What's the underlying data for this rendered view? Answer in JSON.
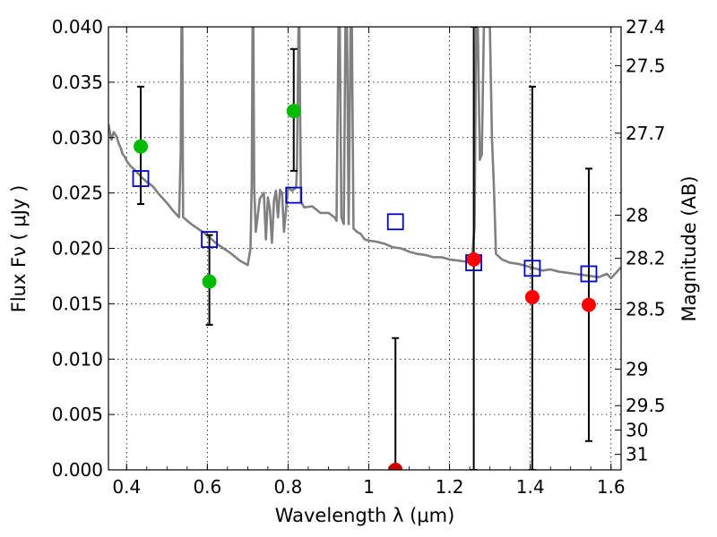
{
  "chart_data": {
    "type": "scatter",
    "xlabel": "Wavelength  λ (μm)",
    "ylabel": "Flux  Fν  ( μJy )",
    "y2label": "Magnitude (AB)",
    "xlim": [
      0.355,
      1.625
    ],
    "ylim": [
      0.0,
      0.04
    ],
    "grid": true,
    "x_ticks": [
      0.4,
      0.6,
      0.8,
      1.0,
      1.2,
      1.4,
      1.6
    ],
    "x_tick_labels": [
      "0.4",
      "0.6",
      "0.8",
      "1",
      "1.2",
      "1.4",
      "1.6"
    ],
    "y_ticks": [
      0.0,
      0.005,
      0.01,
      0.015,
      0.02,
      0.025,
      0.03,
      0.035,
      0.04
    ],
    "y_tick_labels": [
      "0.000",
      "0.005",
      "0.010",
      "0.015",
      "0.020",
      "0.025",
      "0.030",
      "0.035",
      "0.040"
    ],
    "y2_ticks": [
      {
        "label": "27.4",
        "flux": 0.04
      },
      {
        "label": "27.5",
        "flux": 0.0365
      },
      {
        "label": "27.7",
        "flux": 0.0304
      },
      {
        "label": "28",
        "flux": 0.023
      },
      {
        "label": "28.2",
        "flux": 0.0191
      },
      {
        "label": "28.5",
        "flux": 0.0145
      },
      {
        "label": "29",
        "flux": 0.0091
      },
      {
        "label": "29.5",
        "flux": 0.0058
      },
      {
        "label": "30",
        "flux": 0.0036
      },
      {
        "label": "31",
        "flux": 0.0014
      }
    ],
    "model_color": "#808080",
    "model_spectrum": [
      [
        0.355,
        0.0312
      ],
      [
        0.362,
        0.0298
      ],
      [
        0.368,
        0.0305
      ],
      [
        0.375,
        0.0301
      ],
      [
        0.38,
        0.0295
      ],
      [
        0.386,
        0.029
      ],
      [
        0.39,
        0.0285
      ],
      [
        0.395,
        0.0283
      ],
      [
        0.4,
        0.0279
      ],
      [
        0.41,
        0.0274
      ],
      [
        0.42,
        0.0271
      ],
      [
        0.435,
        0.0265
      ],
      [
        0.45,
        0.026
      ],
      [
        0.465,
        0.0256
      ],
      [
        0.48,
        0.0249
      ],
      [
        0.5,
        0.0241
      ],
      [
        0.515,
        0.0234
      ],
      [
        0.53,
        0.0228
      ],
      [
        0.534,
        0.0285
      ],
      [
        0.536,
        0.04
      ],
      [
        0.538,
        0.04
      ],
      [
        0.54,
        0.0228
      ],
      [
        0.56,
        0.0222
      ],
      [
        0.58,
        0.0217
      ],
      [
        0.6,
        0.0212
      ],
      [
        0.62,
        0.0205
      ],
      [
        0.64,
        0.02
      ],
      [
        0.66,
        0.0195
      ],
      [
        0.68,
        0.0189
      ],
      [
        0.7,
        0.0185
      ],
      [
        0.707,
        0.02
      ],
      [
        0.71,
        0.026
      ],
      [
        0.712,
        0.04
      ],
      [
        0.714,
        0.04
      ],
      [
        0.716,
        0.0255
      ],
      [
        0.72,
        0.0215
      ],
      [
        0.73,
        0.0245
      ],
      [
        0.74,
        0.025
      ],
      [
        0.745,
        0.0208
      ],
      [
        0.75,
        0.0246
      ],
      [
        0.755,
        0.0235
      ],
      [
        0.76,
        0.0205
      ],
      [
        0.765,
        0.0243
      ],
      [
        0.77,
        0.0252
      ],
      [
        0.775,
        0.0228
      ],
      [
        0.78,
        0.0253
      ],
      [
        0.785,
        0.025
      ],
      [
        0.79,
        0.0215
      ],
      [
        0.8,
        0.0255
      ],
      [
        0.81,
        0.0252
      ],
      [
        0.82,
        0.0255
      ],
      [
        0.822,
        0.027
      ],
      [
        0.826,
        0.04
      ],
      [
        0.828,
        0.04
      ],
      [
        0.832,
        0.0242
      ],
      [
        0.84,
        0.0237
      ],
      [
        0.86,
        0.0238
      ],
      [
        0.88,
        0.0232
      ],
      [
        0.9,
        0.0232
      ],
      [
        0.915,
        0.0228
      ],
      [
        0.92,
        0.0225
      ],
      [
        0.925,
        0.04
      ],
      [
        0.928,
        0.04
      ],
      [
        0.932,
        0.0228
      ],
      [
        0.938,
        0.0222
      ],
      [
        0.942,
        0.04
      ],
      [
        0.946,
        0.04
      ],
      [
        0.95,
        0.0222
      ],
      [
        0.955,
        0.04
      ],
      [
        0.958,
        0.04
      ],
      [
        0.962,
        0.0218
      ],
      [
        0.97,
        0.0215
      ],
      [
        0.98,
        0.0213
      ],
      [
        0.99,
        0.0208
      ],
      [
        1.0,
        0.0207
      ],
      [
        1.02,
        0.0206
      ],
      [
        1.04,
        0.0204
      ],
      [
        1.06,
        0.0201
      ],
      [
        1.08,
        0.02
      ],
      [
        1.1,
        0.0197
      ],
      [
        1.12,
        0.0195
      ],
      [
        1.14,
        0.0194
      ],
      [
        1.16,
        0.0192
      ],
      [
        1.18,
        0.0192
      ],
      [
        1.2,
        0.019
      ],
      [
        1.22,
        0.0189
      ],
      [
        1.24,
        0.0188
      ],
      [
        1.255,
        0.0187
      ],
      [
        1.262,
        0.022
      ],
      [
        1.266,
        0.04
      ],
      [
        1.27,
        0.04
      ],
      [
        1.275,
        0.028
      ],
      [
        1.28,
        0.0285
      ],
      [
        1.285,
        0.04
      ],
      [
        1.3,
        0.04
      ],
      [
        1.305,
        0.03
      ],
      [
        1.31,
        0.0255
      ],
      [
        1.315,
        0.0195
      ],
      [
        1.33,
        0.019
      ],
      [
        1.35,
        0.0187
      ],
      [
        1.37,
        0.0186
      ],
      [
        1.39,
        0.0184
      ],
      [
        1.41,
        0.0182
      ],
      [
        1.43,
        0.018
      ],
      [
        1.45,
        0.0181
      ],
      [
        1.47,
        0.0179
      ],
      [
        1.49,
        0.0178
      ],
      [
        1.51,
        0.0177
      ],
      [
        1.53,
        0.0176
      ],
      [
        1.55,
        0.0175
      ],
      [
        1.57,
        0.0174
      ],
      [
        1.59,
        0.0177
      ],
      [
        1.6,
        0.0173
      ],
      [
        1.61,
        0.0177
      ],
      [
        1.625,
        0.0183
      ]
    ],
    "model_photometry": {
      "color": "#0000cc",
      "x": [
        0.435,
        0.605,
        0.814,
        1.066,
        1.26,
        1.405,
        1.545
      ],
      "y": [
        0.0263,
        0.0208,
        0.0248,
        0.0224,
        0.0187,
        0.0182,
        0.0177
      ]
    },
    "observed": [
      {
        "x": 0.435,
        "y": 0.0292,
        "err_low": 0.024,
        "err_high": 0.0346,
        "color": "#00bb00"
      },
      {
        "x": 0.605,
        "y": 0.017,
        "err_low": 0.0131,
        "err_high": 0.0212,
        "color": "#00bb00"
      },
      {
        "x": 0.814,
        "y": 0.0324,
        "err_low": 0.027,
        "err_high": 0.038,
        "color": "#00bb00"
      },
      {
        "x": 1.066,
        "y": 0.0,
        "err_low": 0.0,
        "err_high": 0.0119,
        "color": "#cc0000"
      },
      {
        "x": 1.26,
        "y": 0.019,
        "err_low": 0.0,
        "err_high": 0.04,
        "color": "#ff0000"
      },
      {
        "x": 1.405,
        "y": 0.0156,
        "err_low": 0.0,
        "err_high": 0.0346,
        "color": "#ff0000"
      },
      {
        "x": 1.545,
        "y": 0.0149,
        "err_low": 0.0026,
        "err_high": 0.0272,
        "color": "#ff0000"
      }
    ]
  }
}
